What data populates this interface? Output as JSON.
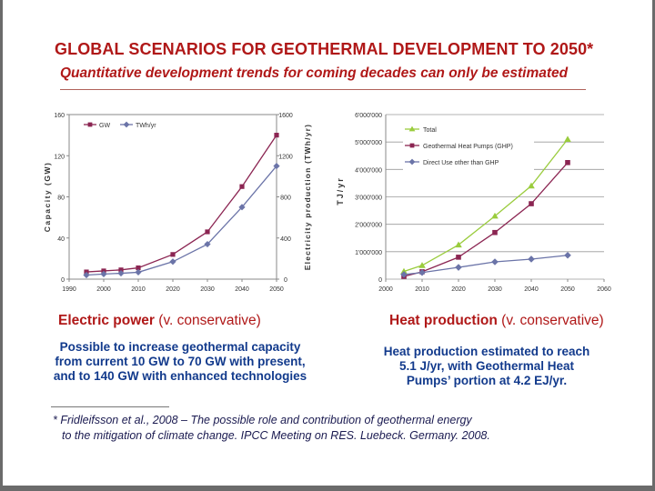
{
  "header": {
    "title": "GLOBAL SCENARIOS FOR GEOTHERMAL DEVELOPMENT TO 2050*",
    "subtitle": "Quantitative development trends for coming decades can only be estimated"
  },
  "colors": {
    "title": "#b01818",
    "body_text": "#123a8c",
    "gw_series": "#8b2552",
    "twh_series": "#6b74a8",
    "total_series": "#9acc3d",
    "ghp_series": "#8b2552",
    "direct_series": "#6b74a8"
  },
  "left_panel": {
    "caption_main": "Electric power",
    "caption_sub": "(v. conservative)",
    "description": [
      "Possible to increase geothermal capacity",
      "from current 10 GW to 70 GW with present,",
      "and to 140 GW with enhanced technologies"
    ]
  },
  "right_panel": {
    "caption_main": "Heat production",
    "caption_sub": "(v. conservative)",
    "description": [
      "Heat production estimated to reach",
      "5.1 J/yr, with Geothermal Heat",
      "Pumps’ portion at 4.2 EJ/yr."
    ]
  },
  "footnote": {
    "line1": "* Fridleifsson et al., 2008 – The possible role and contribution of geothermal energy",
    "line2": "to the mitigation of climate change. IPCC Meeting on RES. Luebeck. Germany. 2008."
  },
  "chart_data": [
    {
      "type": "line",
      "title": "",
      "xlabel": "",
      "ylabel": "Capacity (GW)",
      "y2label": "Electricity production (TWh/yr)",
      "x_ticks": [
        "1990",
        "2000",
        "2010",
        "2020",
        "2030",
        "2040",
        "2050"
      ],
      "y_ticks": [
        "0",
        "40",
        "80",
        "120",
        "160"
      ],
      "y2_ticks": [
        "0",
        "400",
        "800",
        "1200",
        "1600"
      ],
      "xlim": [
        1990,
        2050
      ],
      "ylim": [
        0,
        160
      ],
      "y2lim": [
        0,
        1600
      ],
      "grid": false,
      "legend_position": "top-left",
      "series": [
        {
          "name": "GW",
          "axis": "left",
          "marker": "square",
          "color": "#8b2552",
          "x": [
            1995,
            2000,
            2005,
            2010,
            2020,
            2030,
            2040,
            2050
          ],
          "values": [
            7,
            8,
            9,
            11,
            24,
            46,
            90,
            140
          ]
        },
        {
          "name": "TWh/yr",
          "axis": "right",
          "marker": "diamond",
          "color": "#6b74a8",
          "x": [
            1995,
            2000,
            2005,
            2010,
            2020,
            2030,
            2040,
            2050
          ],
          "values": [
            40,
            50,
            57,
            67,
            170,
            340,
            700,
            1100
          ]
        }
      ]
    },
    {
      "type": "line",
      "title": "",
      "xlabel": "",
      "ylabel": "TJ/yr",
      "x_ticks": [
        "2000",
        "2010",
        "2020",
        "2030",
        "2040",
        "2050",
        "2060"
      ],
      "y_ticks": [
        "0",
        "1'000'000",
        "2'000'000",
        "3'000'000",
        "4'000'000",
        "5'000'000",
        "6'000'000"
      ],
      "xlim": [
        2000,
        2060
      ],
      "ylim": [
        0,
        6000000
      ],
      "grid": true,
      "legend_position": "top-left",
      "series": [
        {
          "name": "Total",
          "marker": "triangle",
          "color": "#9acc3d",
          "x": [
            2005,
            2010,
            2020,
            2030,
            2040,
            2050
          ],
          "values": [
            280000,
            500000,
            1250000,
            2300000,
            3400000,
            5100000
          ]
        },
        {
          "name": "Geothermal Heat Pumps (GHP)",
          "marker": "square",
          "color": "#8b2552",
          "x": [
            2005,
            2010,
            2020,
            2030,
            2040,
            2050
          ],
          "values": [
            100000,
            270000,
            800000,
            1700000,
            2750000,
            4250000
          ]
        },
        {
          "name": "Direct Use other than GHP",
          "marker": "diamond",
          "color": "#6b74a8",
          "x": [
            2005,
            2010,
            2020,
            2030,
            2040,
            2050
          ],
          "values": [
            170000,
            240000,
            430000,
            630000,
            730000,
            870000
          ]
        }
      ]
    }
  ]
}
